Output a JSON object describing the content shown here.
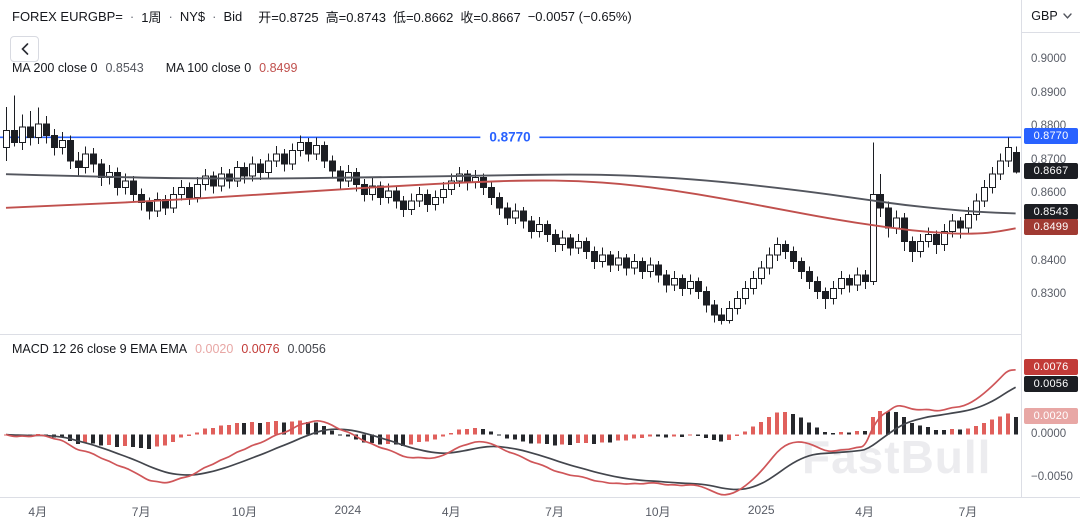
{
  "header": {
    "symbol": "FOREX EURGBP=",
    "separator": "·",
    "interval": "1周",
    "session": "NY$",
    "price_side": "Bid",
    "open": "开=0.8725",
    "high": "高=0.8743",
    "low": "低=0.8662",
    "close": "收=0.8667",
    "change": "−0.0057 (−0.65%)"
  },
  "icons": {
    "back": "chevron-left",
    "currency_dropdown": "chevron-down"
  },
  "currency_selector": {
    "value": "GBP"
  },
  "ma_legend": {
    "ma200_label": "MA 200 close 0",
    "ma200_value": "0.8543",
    "ma100_label": "MA 100 close 0",
    "ma100_value": "0.8499"
  },
  "macd_legend": {
    "label": "MACD 12 26 close 9 EMA EMA",
    "hist_value": "0.0020",
    "macd_value": "0.0076",
    "signal_value": "0.0056"
  },
  "level_line": {
    "label": "0.8770",
    "price": 0.877
  },
  "watermark": "FastBull",
  "colors": {
    "level_blue": "#2962ff",
    "candle_outline": "#1c1e23",
    "up_candle": "#ffffff",
    "down_candle": "#1c1e23",
    "ma200_line": "#53565e",
    "ma100_line": "#c0504d",
    "last_badge_bg": "#1c1e23",
    "ma200_badge_bg": "#1c1e23",
    "ma100_badge_bg": "#a03a32",
    "macd_badge_bg": "#c23b38",
    "signal_badge_bg": "#1c1e23",
    "hist_badge_bg": "#e8a7a5",
    "axis_text": "#585c66"
  },
  "price_axis": {
    "ticks": [
      {
        "label": "0.9000",
        "price": 0.9
      },
      {
        "label": "0.8900",
        "price": 0.89
      },
      {
        "label": "0.8800",
        "price": 0.88
      },
      {
        "label": "0.8700",
        "price": 0.87
      },
      {
        "label": "0.8600",
        "price": 0.86
      },
      {
        "label": "0.8400",
        "price": 0.84
      },
      {
        "label": "0.8300",
        "price": 0.83
      }
    ],
    "badges": [
      {
        "name": "level-badge",
        "text": "0.8770",
        "price": 0.877,
        "bg": "#2962ff"
      },
      {
        "name": "last-price-badge",
        "text": "0.8667",
        "price": 0.8667,
        "bg": "#1c1e23"
      },
      {
        "name": "ma200-badge",
        "text": "0.8543",
        "price": 0.8543,
        "bg": "#1c1e23"
      },
      {
        "name": "ma100-badge",
        "text": "0.8499",
        "price": 0.8499,
        "bg": "#a03a32"
      }
    ]
  },
  "macd_axis": {
    "ticks": [
      {
        "label": "0.0000",
        "value": 0.0
      },
      {
        "label": "−0.0050",
        "value": -0.005
      }
    ],
    "badges": [
      {
        "name": "macd-badge",
        "text": "0.0076",
        "value": 0.0076,
        "bg": "#c23b38"
      },
      {
        "name": "signal-badge",
        "text": "0.0056",
        "value": 0.0056,
        "bg": "#1c1e23"
      },
      {
        "name": "hist-badge",
        "text": "0.0020",
        "value": 0.002,
        "bg": "#e8a7a5"
      }
    ]
  },
  "chart_data": [
    {
      "type": "candlestick",
      "title": "FOREX EURGBP= 1周 NY$ Bid",
      "ylim": [
        0.8196,
        0.9015
      ],
      "up_color": "#ffffff",
      "down_color": "#1c1e23",
      "x_ticks": [
        {
          "label": "4月",
          "index": 4
        },
        {
          "label": "7月",
          "index": 17
        },
        {
          "label": "10月",
          "index": 30
        },
        {
          "label": "2024",
          "index": 43
        },
        {
          "label": "4月",
          "index": 56
        },
        {
          "label": "7月",
          "index": 69
        },
        {
          "label": "10月",
          "index": 82
        },
        {
          "label": "2025",
          "index": 95
        },
        {
          "label": "4月",
          "index": 108
        },
        {
          "label": "7月",
          "index": 121
        }
      ],
      "level_line": {
        "price": 0.877,
        "color": "#2962ff"
      },
      "candles": [
        [
          0.874,
          0.886,
          0.87,
          0.879
        ],
        [
          0.879,
          0.8895,
          0.8742,
          0.8755
        ],
        [
          0.8755,
          0.8838,
          0.8732,
          0.88
        ],
        [
          0.88,
          0.8848,
          0.8745,
          0.877
        ],
        [
          0.877,
          0.8858,
          0.875,
          0.881
        ],
        [
          0.881,
          0.8833,
          0.8752,
          0.8775
        ],
        [
          0.8775,
          0.8795,
          0.8715,
          0.874
        ],
        [
          0.874,
          0.8786,
          0.8718,
          0.876
        ],
        [
          0.876,
          0.8775,
          0.8676,
          0.87
        ],
        [
          0.87,
          0.8726,
          0.8655,
          0.868
        ],
        [
          0.868,
          0.8742,
          0.8662,
          0.872
        ],
        [
          0.872,
          0.8738,
          0.8665,
          0.869
        ],
        [
          0.869,
          0.8706,
          0.8625,
          0.865
        ],
        [
          0.865,
          0.8688,
          0.863,
          0.8665
        ],
        [
          0.8665,
          0.868,
          0.8597,
          0.862
        ],
        [
          0.862,
          0.8662,
          0.86,
          0.864
        ],
        [
          0.864,
          0.8655,
          0.8575,
          0.86
        ],
        [
          0.86,
          0.8618,
          0.8552,
          0.8575
        ],
        [
          0.8575,
          0.859,
          0.8525,
          0.855
        ],
        [
          0.855,
          0.8605,
          0.8532,
          0.8585
        ],
        [
          0.8585,
          0.8598,
          0.8538,
          0.856
        ],
        [
          0.856,
          0.8622,
          0.8545,
          0.86
        ],
        [
          0.86,
          0.8642,
          0.8582,
          0.862
        ],
        [
          0.862,
          0.8635,
          0.8568,
          0.859
        ],
        [
          0.859,
          0.8652,
          0.8575,
          0.863
        ],
        [
          0.863,
          0.8676,
          0.8612,
          0.8655
        ],
        [
          0.8655,
          0.8668,
          0.8602,
          0.8625
        ],
        [
          0.8625,
          0.8682,
          0.8608,
          0.866
        ],
        [
          0.866,
          0.8675,
          0.8618,
          0.864
        ],
        [
          0.864,
          0.87,
          0.8622,
          0.868
        ],
        [
          0.868,
          0.8695,
          0.8632,
          0.8655
        ],
        [
          0.8655,
          0.8712,
          0.8638,
          0.869
        ],
        [
          0.869,
          0.8705,
          0.8642,
          0.8665
        ],
        [
          0.8665,
          0.8722,
          0.8648,
          0.87
        ],
        [
          0.87,
          0.8744,
          0.8682,
          0.872
        ],
        [
          0.872,
          0.8735,
          0.8668,
          0.869
        ],
        [
          0.869,
          0.8752,
          0.8672,
          0.873
        ],
        [
          0.873,
          0.8775,
          0.8712,
          0.8755
        ],
        [
          0.8755,
          0.8768,
          0.8698,
          0.872
        ],
        [
          0.872,
          0.877,
          0.8702,
          0.8745
        ],
        [
          0.8745,
          0.8758,
          0.8678,
          0.87
        ],
        [
          0.87,
          0.8715,
          0.8648,
          0.867
        ],
        [
          0.867,
          0.8685,
          0.8618,
          0.864
        ],
        [
          0.864,
          0.8688,
          0.8622,
          0.8665
        ],
        [
          0.8665,
          0.8678,
          0.8608,
          0.863
        ],
        [
          0.863,
          0.8645,
          0.8578,
          0.86
        ],
        [
          0.86,
          0.8648,
          0.8582,
          0.8625
        ],
        [
          0.8625,
          0.8638,
          0.8568,
          0.859
        ],
        [
          0.859,
          0.8632,
          0.8572,
          0.861
        ],
        [
          0.861,
          0.8622,
          0.8558,
          0.858
        ],
        [
          0.858,
          0.8595,
          0.8532,
          0.8555
        ],
        [
          0.8555,
          0.8602,
          0.8538,
          0.858
        ],
        [
          0.858,
          0.8622,
          0.8562,
          0.86
        ],
        [
          0.86,
          0.8615,
          0.8548,
          0.857
        ],
        [
          0.857,
          0.8612,
          0.8552,
          0.859
        ],
        [
          0.859,
          0.8637,
          0.8572,
          0.8615
        ],
        [
          0.8615,
          0.8662,
          0.8598,
          0.864
        ],
        [
          0.864,
          0.8682,
          0.8622,
          0.866
        ],
        [
          0.866,
          0.8672,
          0.8612,
          0.8635
        ],
        [
          0.8635,
          0.8672,
          0.8618,
          0.865
        ],
        [
          0.865,
          0.8662,
          0.8598,
          0.862
        ],
        [
          0.862,
          0.8635,
          0.8568,
          0.859
        ],
        [
          0.859,
          0.8605,
          0.8538,
          0.856
        ],
        [
          0.856,
          0.8575,
          0.8508,
          0.853
        ],
        [
          0.853,
          0.8572,
          0.8512,
          0.855
        ],
        [
          0.855,
          0.8562,
          0.8498,
          0.852
        ],
        [
          0.852,
          0.8535,
          0.8468,
          0.849
        ],
        [
          0.849,
          0.8532,
          0.8472,
          0.851
        ],
        [
          0.851,
          0.8522,
          0.8458,
          0.848
        ],
        [
          0.848,
          0.8495,
          0.8428,
          0.845
        ],
        [
          0.845,
          0.8492,
          0.8432,
          0.847
        ],
        [
          0.847,
          0.8482,
          0.8418,
          0.844
        ],
        [
          0.844,
          0.8482,
          0.8422,
          0.846
        ],
        [
          0.846,
          0.8472,
          0.8408,
          0.843
        ],
        [
          0.843,
          0.8445,
          0.8378,
          0.84
        ],
        [
          0.84,
          0.8442,
          0.8382,
          0.842
        ],
        [
          0.842,
          0.8432,
          0.8368,
          0.839
        ],
        [
          0.839,
          0.8432,
          0.8372,
          0.841
        ],
        [
          0.841,
          0.8422,
          0.8358,
          0.838
        ],
        [
          0.838,
          0.8422,
          0.8362,
          0.84
        ],
        [
          0.84,
          0.8412,
          0.8348,
          0.837
        ],
        [
          0.837,
          0.8412,
          0.8352,
          0.839
        ],
        [
          0.839,
          0.8402,
          0.8338,
          0.836
        ],
        [
          0.836,
          0.8375,
          0.8308,
          0.833
        ],
        [
          0.833,
          0.8372,
          0.8312,
          0.835
        ],
        [
          0.835,
          0.8362,
          0.8298,
          0.832
        ],
        [
          0.832,
          0.8362,
          0.8302,
          0.834
        ],
        [
          0.834,
          0.8352,
          0.8288,
          0.831
        ],
        [
          0.831,
          0.8325,
          0.8248,
          0.827
        ],
        [
          0.827,
          0.8285,
          0.8218,
          0.824
        ],
        [
          0.824,
          0.8262,
          0.8212,
          0.8225
        ],
        [
          0.8225,
          0.8282,
          0.8215,
          0.826
        ],
        [
          0.826,
          0.8312,
          0.8242,
          0.829
        ],
        [
          0.829,
          0.8342,
          0.8272,
          0.832
        ],
        [
          0.832,
          0.8372,
          0.8302,
          0.835
        ],
        [
          0.835,
          0.8402,
          0.8332,
          0.838
        ],
        [
          0.838,
          0.8442,
          0.8362,
          0.842
        ],
        [
          0.842,
          0.8472,
          0.8402,
          0.845
        ],
        [
          0.845,
          0.8462,
          0.8408,
          0.843
        ],
        [
          0.843,
          0.8445,
          0.8378,
          0.84
        ],
        [
          0.84,
          0.8412,
          0.8348,
          0.837
        ],
        [
          0.837,
          0.8385,
          0.8318,
          0.834
        ],
        [
          0.834,
          0.8355,
          0.8288,
          0.831
        ],
        [
          0.831,
          0.8322,
          0.8258,
          0.829
        ],
        [
          0.829,
          0.8342,
          0.8272,
          0.832
        ],
        [
          0.832,
          0.8372,
          0.8302,
          0.835
        ],
        [
          0.835,
          0.8362,
          0.8308,
          0.833
        ],
        [
          0.833,
          0.8382,
          0.8312,
          0.836
        ],
        [
          0.836,
          0.8375,
          0.8318,
          0.834
        ],
        [
          0.834,
          0.8755,
          0.833,
          0.86
        ],
        [
          0.86,
          0.866,
          0.8532,
          0.856
        ],
        [
          0.856,
          0.8578,
          0.8472,
          0.85
        ],
        [
          0.85,
          0.8552,
          0.8482,
          0.853
        ],
        [
          0.853,
          0.8545,
          0.8432,
          0.846
        ],
        [
          0.846,
          0.8475,
          0.8398,
          0.843
        ],
        [
          0.843,
          0.8482,
          0.8412,
          0.846
        ],
        [
          0.846,
          0.8502,
          0.8442,
          0.848
        ],
        [
          0.848,
          0.8492,
          0.8422,
          0.845
        ],
        [
          0.845,
          0.8512,
          0.8432,
          0.849
        ],
        [
          0.849,
          0.8542,
          0.8472,
          0.852
        ],
        [
          0.852,
          0.8532,
          0.8468,
          0.85
        ],
        [
          0.85,
          0.8562,
          0.8482,
          0.854
        ],
        [
          0.854,
          0.8602,
          0.8522,
          0.858
        ],
        [
          0.858,
          0.8642,
          0.8562,
          0.862
        ],
        [
          0.862,
          0.8682,
          0.8602,
          0.866
        ],
        [
          0.866,
          0.8722,
          0.8642,
          0.87
        ],
        [
          0.87,
          0.877,
          0.8682,
          0.874
        ],
        [
          0.8725,
          0.8743,
          0.8662,
          0.8667
        ]
      ],
      "overlays": [
        {
          "name": "MA 200",
          "color": "#53565e",
          "current": 0.8543,
          "points": [
            [
              0,
              0.866
            ],
            [
              15,
              0.865
            ],
            [
              30,
              0.8646
            ],
            [
              45,
              0.865
            ],
            [
              60,
              0.8656
            ],
            [
              72,
              0.866
            ],
            [
              80,
              0.8655
            ],
            [
              88,
              0.8642
            ],
            [
              95,
              0.8625
            ],
            [
              102,
              0.8605
            ],
            [
              108,
              0.8585
            ],
            [
              113,
              0.8568
            ],
            [
              118,
              0.8556
            ],
            [
              122,
              0.8548
            ],
            [
              127,
              0.8543
            ]
          ]
        },
        {
          "name": "MA 100",
          "color": "#c0504d",
          "current": 0.8499,
          "points": [
            [
              0,
              0.856
            ],
            [
              10,
              0.857
            ],
            [
              20,
              0.8582
            ],
            [
              30,
              0.8596
            ],
            [
              40,
              0.8612
            ],
            [
              50,
              0.8626
            ],
            [
              58,
              0.8636
            ],
            [
              66,
              0.8642
            ],
            [
              72,
              0.864
            ],
            [
              78,
              0.863
            ],
            [
              84,
              0.8612
            ],
            [
              90,
              0.8588
            ],
            [
              96,
              0.8562
            ],
            [
              102,
              0.8535
            ],
            [
              107,
              0.8515
            ],
            [
              112,
              0.8498
            ],
            [
              116,
              0.8488
            ],
            [
              120,
              0.8482
            ],
            [
              123,
              0.8484
            ],
            [
              125,
              0.849
            ],
            [
              127,
              0.8499
            ]
          ]
        }
      ]
    },
    {
      "type": "macd",
      "title": "MACD 12 26 close 9 EMA EMA",
      "params": {
        "fast": 12,
        "slow": 26,
        "signal": 9,
        "source": "close"
      },
      "ylim": [
        -0.007,
        0.011
      ],
      "current": {
        "hist": 0.002,
        "macd": 0.0076,
        "signal": 0.0056
      },
      "colors": {
        "macd": "#cf5659",
        "signal": "#43464d",
        "hist_up": "#e0605c",
        "hist_down": "#26282c"
      }
    }
  ]
}
